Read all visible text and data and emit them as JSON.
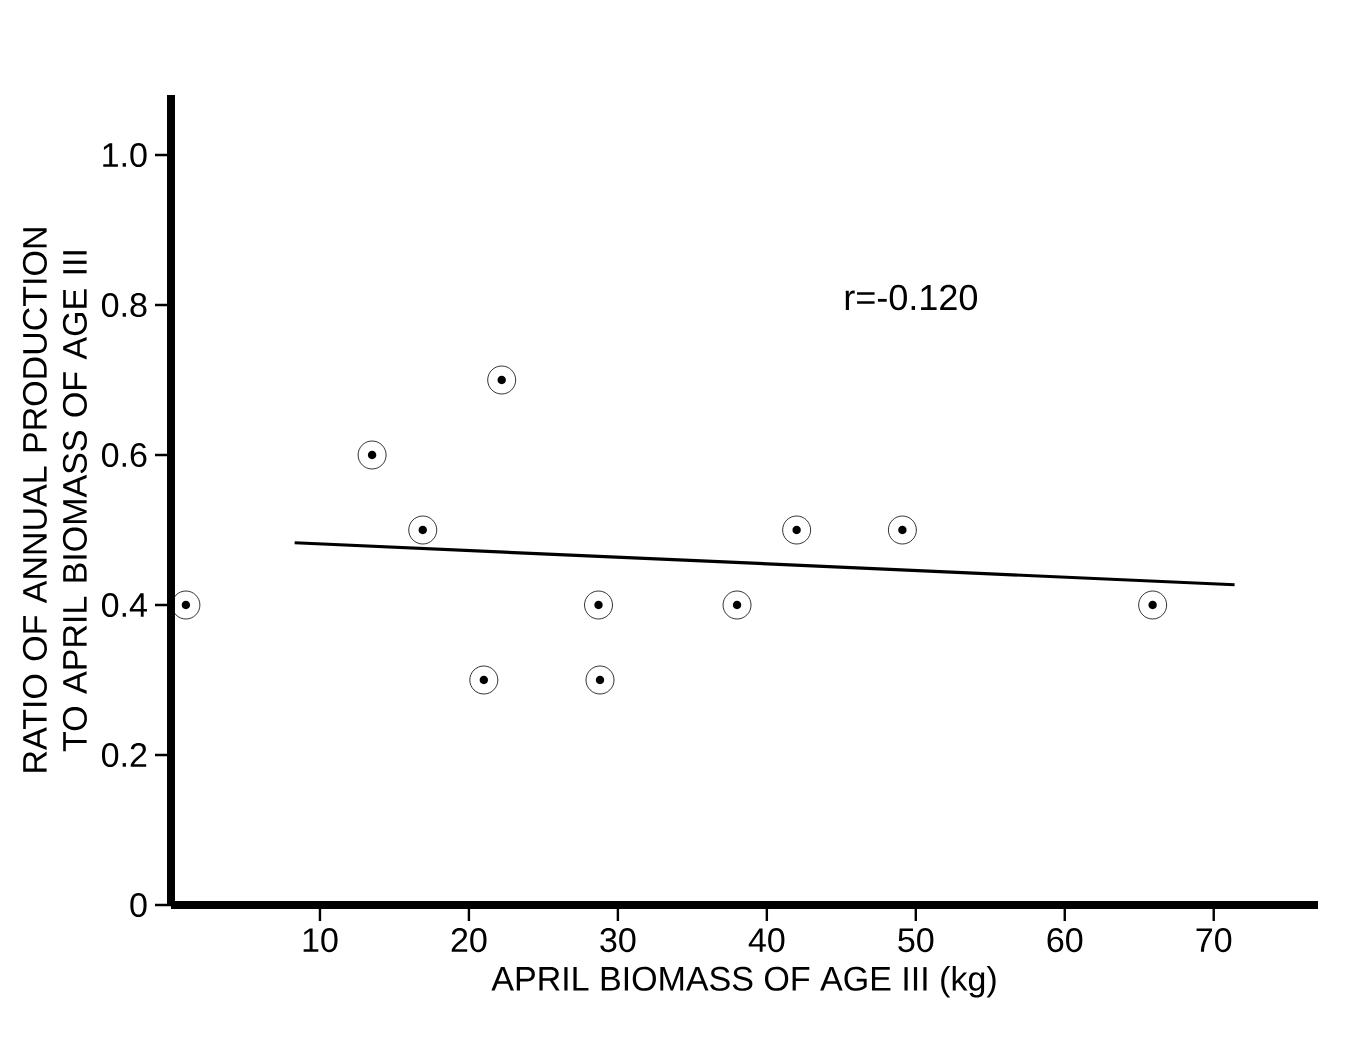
{
  "chart_data": {
    "type": "scatter",
    "xlabel": "APRIL BIOMASS OF AGE III (kg)",
    "ylabel": "RATIO OF ANNUAL PRODUCTION TO APRIL BIOMASS OF AGE III",
    "annotations": [
      "r=-0.120"
    ],
    "xlim": [
      0,
      77
    ],
    "ylim": [
      0,
      1.08
    ],
    "xticks": [
      10,
      20,
      30,
      40,
      50,
      60,
      70
    ],
    "yticks": [
      0,
      {
        "value": 0.2,
        "label": "0.2"
      },
      {
        "value": 0.4,
        "label": "0.4"
      },
      {
        "value": 0.6,
        "label": "0.6"
      },
      {
        "value": 0.8,
        "label": "0.8"
      },
      {
        "value": 1.0,
        "label": "1.0"
      }
    ],
    "grid": false,
    "series": [
      {
        "color": "#000000",
        "marker": "circle",
        "x": [
          1.0,
          13.5,
          16.9,
          22.2,
          21.0,
          28.7,
          28.8,
          38.0,
          42.0,
          49.1,
          65.9
        ],
        "values": [
          0.4,
          0.6,
          0.5,
          0.7,
          0.3,
          0.4,
          0.3,
          0.4,
          0.5,
          0.5,
          0.4
        ]
      },
      {
        "type": "line",
        "color": "#000000",
        "x": [
          8.3,
          71.4
        ],
        "values": [
          0.483,
          0.427
        ],
        "line_style": "solid"
      }
    ]
  }
}
